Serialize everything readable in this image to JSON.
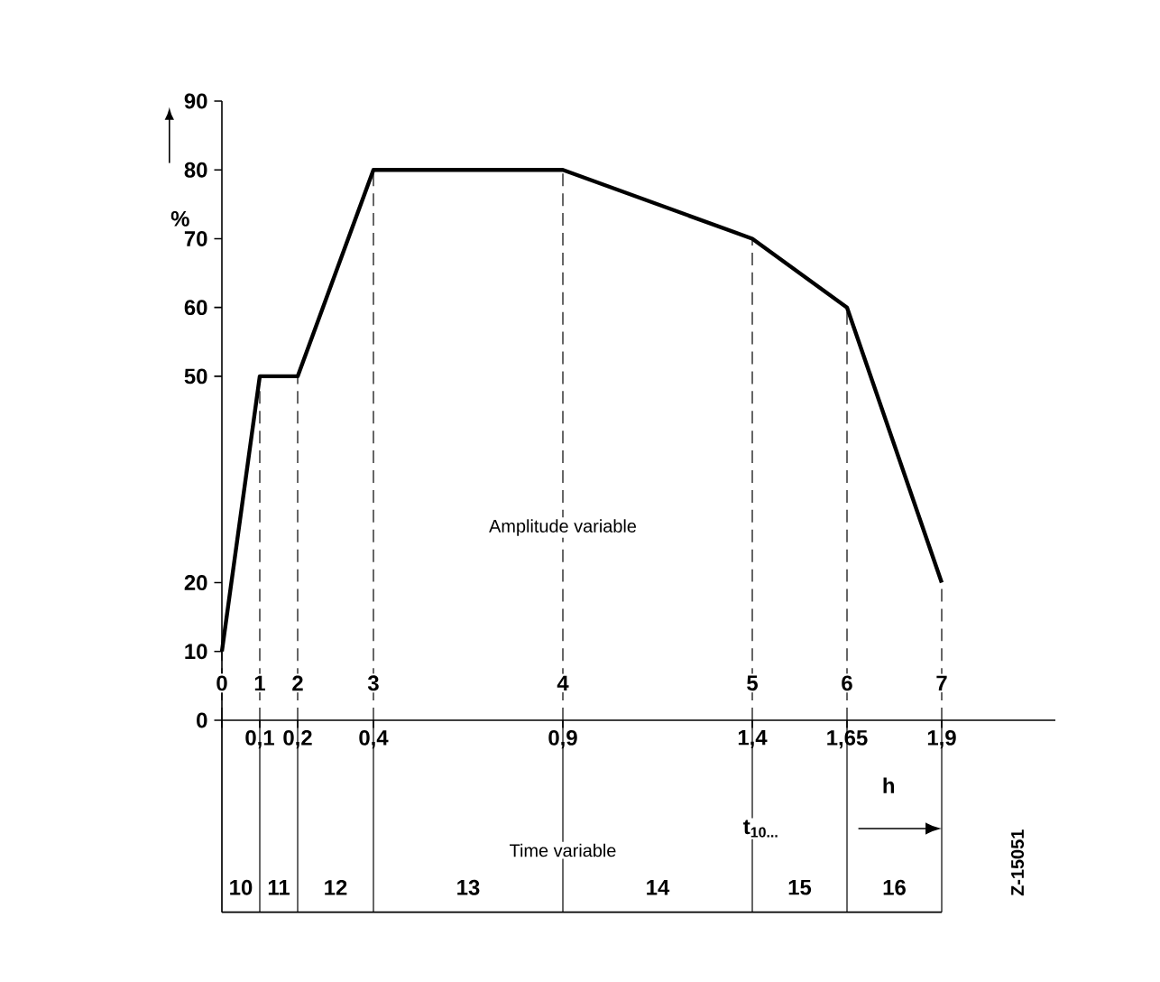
{
  "chart_data": {
    "type": "line",
    "x": [
      0,
      0.1,
      0.2,
      0.4,
      0.9,
      1.4,
      1.65,
      1.9
    ],
    "values": [
      10,
      50,
      50,
      80,
      80,
      70,
      60,
      20
    ],
    "color": "#000000",
    "xlim": [
      0,
      2.2
    ],
    "xticks": [
      {
        "value": 0,
        "label": null
      },
      {
        "value": 0.1,
        "label": "0,1"
      },
      {
        "value": 0.2,
        "label": "0,2"
      },
      {
        "value": 0.4,
        "label": "0,4"
      },
      {
        "value": 0.9,
        "label": "0,9"
      },
      {
        "value": 1.4,
        "label": "1,4"
      },
      {
        "value": 1.65,
        "label": "1,65"
      },
      {
        "value": 1.9,
        "label": "1,9"
      }
    ],
    "ylim": [
      0,
      90
    ],
    "yticks": [
      0,
      10,
      20,
      50,
      60,
      70,
      80,
      90
    ],
    "ylabel": "%",
    "xlabel": "t$_{10...}$",
    "ref_lines": [
      {
        "axis": "x",
        "value": 0,
        "line_style": "dashed"
      },
      {
        "axis": "x",
        "value": 0.1,
        "line_style": "dashed"
      },
      {
        "axis": "x",
        "value": 0.2,
        "line_style": "dashed"
      },
      {
        "axis": "x",
        "value": 0.4,
        "line_style": "dashed"
      },
      {
        "axis": "x",
        "value": 0.9,
        "line_style": "dashed"
      },
      {
        "axis": "x",
        "value": 1.4,
        "line_style": "dashed"
      },
      {
        "axis": "x",
        "value": 1.65,
        "line_style": "dashed"
      },
      {
        "axis": "x",
        "value": 1.9,
        "line_style": "dashed"
      }
    ],
    "annotations": [
      "Amplitude variable",
      "Time variable",
      "h",
      "Z-15051",
      "0",
      "1",
      "2",
      "3",
      "4",
      "5",
      "6",
      "7",
      "10",
      "11",
      "12",
      "13",
      "14",
      "15",
      "16"
    ],
    "marker": "none",
    "line_style": "solid"
  }
}
